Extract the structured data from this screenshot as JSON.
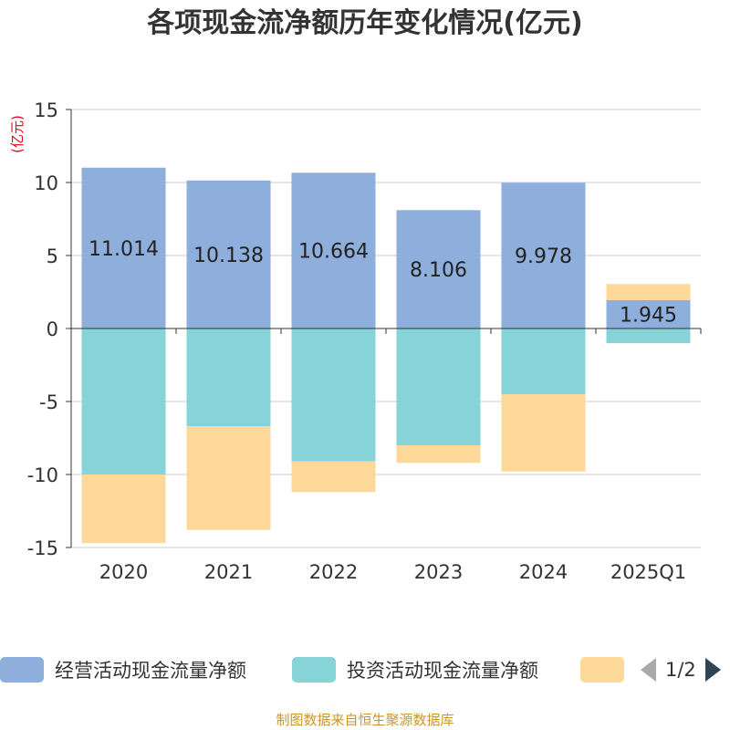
{
  "title": "各项现金流净额历年变化情况(亿元)",
  "unit_label": "(亿元)",
  "source": "制图数据来自恒生聚源数据库",
  "legend": {
    "items": [
      {
        "label": "经营活动现金流量净额",
        "color": "#8eaedc"
      },
      {
        "label": "投资活动现金流量净额",
        "color": "#86d4d8"
      },
      {
        "label": "",
        "color": "#fdd898"
      }
    ],
    "page": "1/2"
  },
  "chart_data": {
    "type": "bar",
    "stacked": true,
    "categories": [
      "2020",
      "2021",
      "2022",
      "2023",
      "2024",
      "2025Q1"
    ],
    "series": [
      {
        "name": "经营活动现金流量净额",
        "color": "#8eaedc",
        "values": [
          11.014,
          10.138,
          10.664,
          8.106,
          9.978,
          1.945
        ],
        "labels": [
          "11.014",
          "10.138",
          "10.664",
          "8.106",
          "9.978",
          "1.945"
        ]
      },
      {
        "name": "投资活动现金流量净额",
        "color": "#86d4d8",
        "values": [
          -10.0,
          -6.7,
          -9.1,
          -8.0,
          -4.5,
          -1.0
        ]
      },
      {
        "color": "#fdd898",
        "values": [
          -4.7,
          -7.1,
          -2.1,
          -1.2,
          -5.3,
          1.1
        ]
      }
    ],
    "ylim": [
      -15,
      15
    ],
    "yticks": [
      "15",
      "10",
      "5",
      "0",
      "-5",
      "-10",
      "-15"
    ],
    "grid": true
  }
}
